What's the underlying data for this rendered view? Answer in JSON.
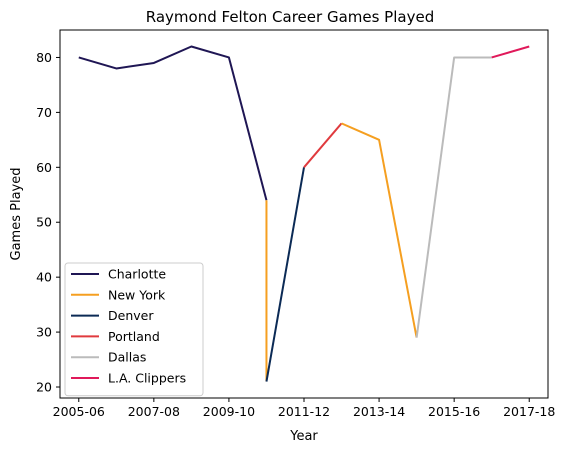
{
  "chart_data": {
    "type": "line",
    "title": "Raymond Felton Career Games Played",
    "xlabel": "Year",
    "ylabel": "Games Played",
    "x": [
      "2005-06",
      "2006-07",
      "2007-08",
      "2008-09",
      "2009-10",
      "2010-11",
      "2010-11",
      "2011-12",
      "2012-13",
      "2013-14",
      "2014-15",
      "2015-16",
      "2016-17",
      "2017-18"
    ],
    "x_ticks": [
      "2005-06",
      "2007-08",
      "2009-10",
      "2011-12",
      "2013-14",
      "2015-16",
      "2017-18"
    ],
    "ylim": [
      18,
      85
    ],
    "y_ticks": [
      20,
      30,
      40,
      50,
      60,
      70,
      80
    ],
    "grid": false,
    "legend_position": "lower-left",
    "series": [
      {
        "name": "Charlotte",
        "color": "#1f1654",
        "points": [
          [
            "2005-06",
            80
          ],
          [
            "2006-07",
            78
          ],
          [
            "2007-08",
            79
          ],
          [
            "2008-09",
            82
          ],
          [
            "2009-10",
            80
          ],
          [
            "2010-11",
            54
          ]
        ]
      },
      {
        "name": "New York",
        "color": "#f59f20",
        "points": [
          [
            "2010-11",
            54
          ],
          [
            "2010-11",
            21
          ]
        ]
      },
      {
        "name": "Denver",
        "color": "#0b2a55",
        "points": [
          [
            "2010-11",
            21
          ],
          [
            "2011-12",
            60
          ]
        ]
      },
      {
        "name": "Portland",
        "color": "#e03a3e",
        "points": [
          [
            "2011-12",
            60
          ],
          [
            "2012-13",
            68
          ]
        ]
      },
      {
        "name": "New York",
        "color": "#f59f20",
        "legend": false,
        "points": [
          [
            "2012-13",
            68
          ],
          [
            "2013-14",
            65
          ],
          [
            "2014-15",
            29
          ]
        ]
      },
      {
        "name": "Dallas",
        "color": "#bbbbbb",
        "points": [
          [
            "2014-15",
            29
          ],
          [
            "2015-16",
            80
          ],
          [
            "2016-17",
            80
          ]
        ]
      },
      {
        "name": "L.A. Clippers",
        "color": "#e0195a",
        "points": [
          [
            "2016-17",
            80
          ],
          [
            "2017-18",
            82
          ]
        ]
      }
    ]
  }
}
